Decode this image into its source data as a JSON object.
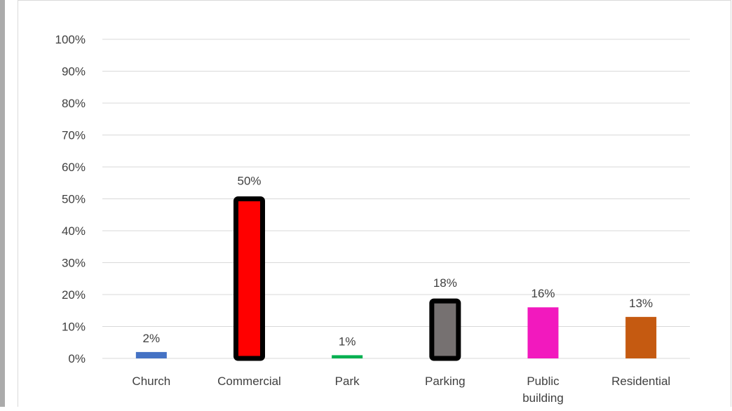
{
  "chart_data": {
    "type": "bar",
    "title": "",
    "xlabel": "",
    "ylabel": "",
    "categories": [
      "Church",
      "Commercial",
      "Park",
      "Parking",
      "Public building",
      "Residential"
    ],
    "category_lines": [
      [
        "Church"
      ],
      [
        "Commercial"
      ],
      [
        "Park"
      ],
      [
        "Parking"
      ],
      [
        "Public",
        "building"
      ],
      [
        "Residential"
      ]
    ],
    "values": [
      2,
      50,
      1,
      18,
      16,
      13
    ],
    "value_labels": [
      "2%",
      "50%",
      "1%",
      "18%",
      "16%",
      "13%"
    ],
    "colors": [
      "#4472c4",
      "#ff0000",
      "#00b050",
      "#767171",
      "#f219be",
      "#c55a11"
    ],
    "outlined": [
      false,
      true,
      false,
      true,
      false,
      false
    ],
    "outline_color": "#000000",
    "ylim": [
      0,
      100
    ],
    "yticks": [
      0,
      10,
      20,
      30,
      40,
      50,
      60,
      70,
      80,
      90,
      100
    ],
    "ytick_labels": [
      "0%",
      "10%",
      "20%",
      "30%",
      "40%",
      "50%",
      "60%",
      "70%",
      "80%",
      "90%",
      "100%"
    ],
    "grid": true,
    "legend": "none"
  }
}
